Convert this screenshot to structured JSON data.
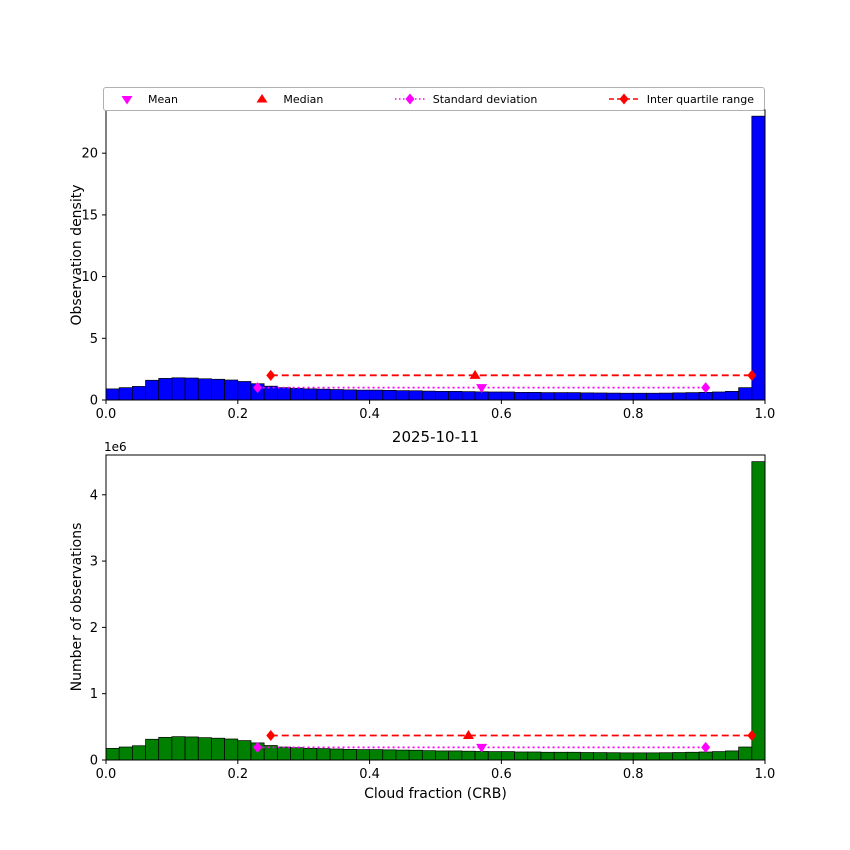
{
  "figure": {
    "date_title": "2025-10-11",
    "offset_text": "1e6"
  },
  "colors": {
    "hist_density": "#0000ff",
    "hist_counts": "#008000",
    "bar_edge": "#000000",
    "mean": "#ff00ff",
    "median": "#ff0000",
    "std": "#ff00ff",
    "iqr": "#ff0000",
    "axis": "#000000"
  },
  "legend": {
    "items": [
      {
        "label": "Mean",
        "marker": "triangle-down",
        "line": "none",
        "color": "#ff00ff"
      },
      {
        "label": "Median",
        "marker": "triangle-up",
        "line": "none",
        "color": "#ff0000"
      },
      {
        "label": "Standard deviation",
        "marker": "diamond",
        "line": "dotted",
        "color": "#ff00ff"
      },
      {
        "label": "Inter quartile range",
        "marker": "diamond",
        "line": "dashed",
        "color": "#ff0000"
      }
    ]
  },
  "chart_data": [
    {
      "id": "observation-density-histogram",
      "type": "bar",
      "title": "",
      "xlabel": "",
      "ylabel": "Observation density",
      "bar_color": "#0000ff",
      "bar_edge_color": "#000000",
      "xlim": [
        0.0,
        1.0
      ],
      "ylim": [
        0,
        23.5
      ],
      "bin_start": 0.0,
      "bin_width": 0.02,
      "xticks": [
        0.0,
        0.2,
        0.4,
        0.6,
        0.8,
        1.0
      ],
      "xtick_labels": [
        "0.0",
        "0.2",
        "0.4",
        "0.6",
        "0.8",
        "1.0"
      ],
      "yticks": [
        0,
        5,
        10,
        15,
        20
      ],
      "ytick_labels": [
        "0",
        "5",
        "10",
        "15",
        "20"
      ],
      "values": [
        0.9,
        1.0,
        1.1,
        1.6,
        1.75,
        1.8,
        1.78,
        1.72,
        1.68,
        1.62,
        1.5,
        1.32,
        1.12,
        1.0,
        0.95,
        0.9,
        0.88,
        0.85,
        0.82,
        0.8,
        0.8,
        0.78,
        0.76,
        0.75,
        0.72,
        0.7,
        0.7,
        0.68,
        0.66,
        0.65,
        0.65,
        0.62,
        0.62,
        0.6,
        0.6,
        0.6,
        0.58,
        0.57,
        0.56,
        0.55,
        0.55,
        0.55,
        0.56,
        0.58,
        0.6,
        0.62,
        0.65,
        0.7,
        1.0,
        23.0
      ],
      "stats": {
        "mean_x": 0.57,
        "median_x": 0.56,
        "std_range": [
          0.23,
          0.91
        ],
        "std_line_y": 1.0,
        "iqr_range": [
          0.25,
          0.98
        ],
        "iqr_line_y": 2.0
      }
    },
    {
      "id": "number-of-observations-histogram",
      "type": "bar",
      "title": "2025-10-11",
      "xlabel": "Cloud fraction (CRB)",
      "ylabel": "Number of observations",
      "offset_text": "1e6",
      "bar_color": "#008000",
      "bar_edge_color": "#000000",
      "xlim": [
        0.0,
        1.0
      ],
      "ylim": [
        0,
        4600000
      ],
      "bin_start": 0.0,
      "bin_width": 0.02,
      "xticks": [
        0.0,
        0.2,
        0.4,
        0.6,
        0.8,
        1.0
      ],
      "xtick_labels": [
        "0.0",
        "0.2",
        "0.4",
        "0.6",
        "0.8",
        "1.0"
      ],
      "yticks": [
        0,
        1000000,
        2000000,
        3000000,
        4000000
      ],
      "ytick_labels": [
        "0",
        "1",
        "2",
        "3",
        "4"
      ],
      "values": [
        176000,
        196000,
        215000,
        313000,
        342000,
        352000,
        348000,
        337000,
        329000,
        317000,
        293000,
        258000,
        219000,
        196000,
        186000,
        176000,
        172000,
        166000,
        160000,
        157000,
        157000,
        153000,
        149000,
        147000,
        141000,
        137000,
        137000,
        133000,
        129000,
        127000,
        127000,
        121000,
        121000,
        117000,
        117000,
        117000,
        113000,
        112000,
        110000,
        108000,
        108000,
        108000,
        110000,
        113000,
        117000,
        121000,
        127000,
        137000,
        196000,
        4500000
      ],
      "stats": {
        "mean_x": 0.57,
        "median_x": 0.55,
        "std_range": [
          0.23,
          0.91
        ],
        "std_line_y": 190000,
        "iqr_range": [
          0.25,
          0.98
        ],
        "iqr_line_y": 370000
      }
    }
  ]
}
